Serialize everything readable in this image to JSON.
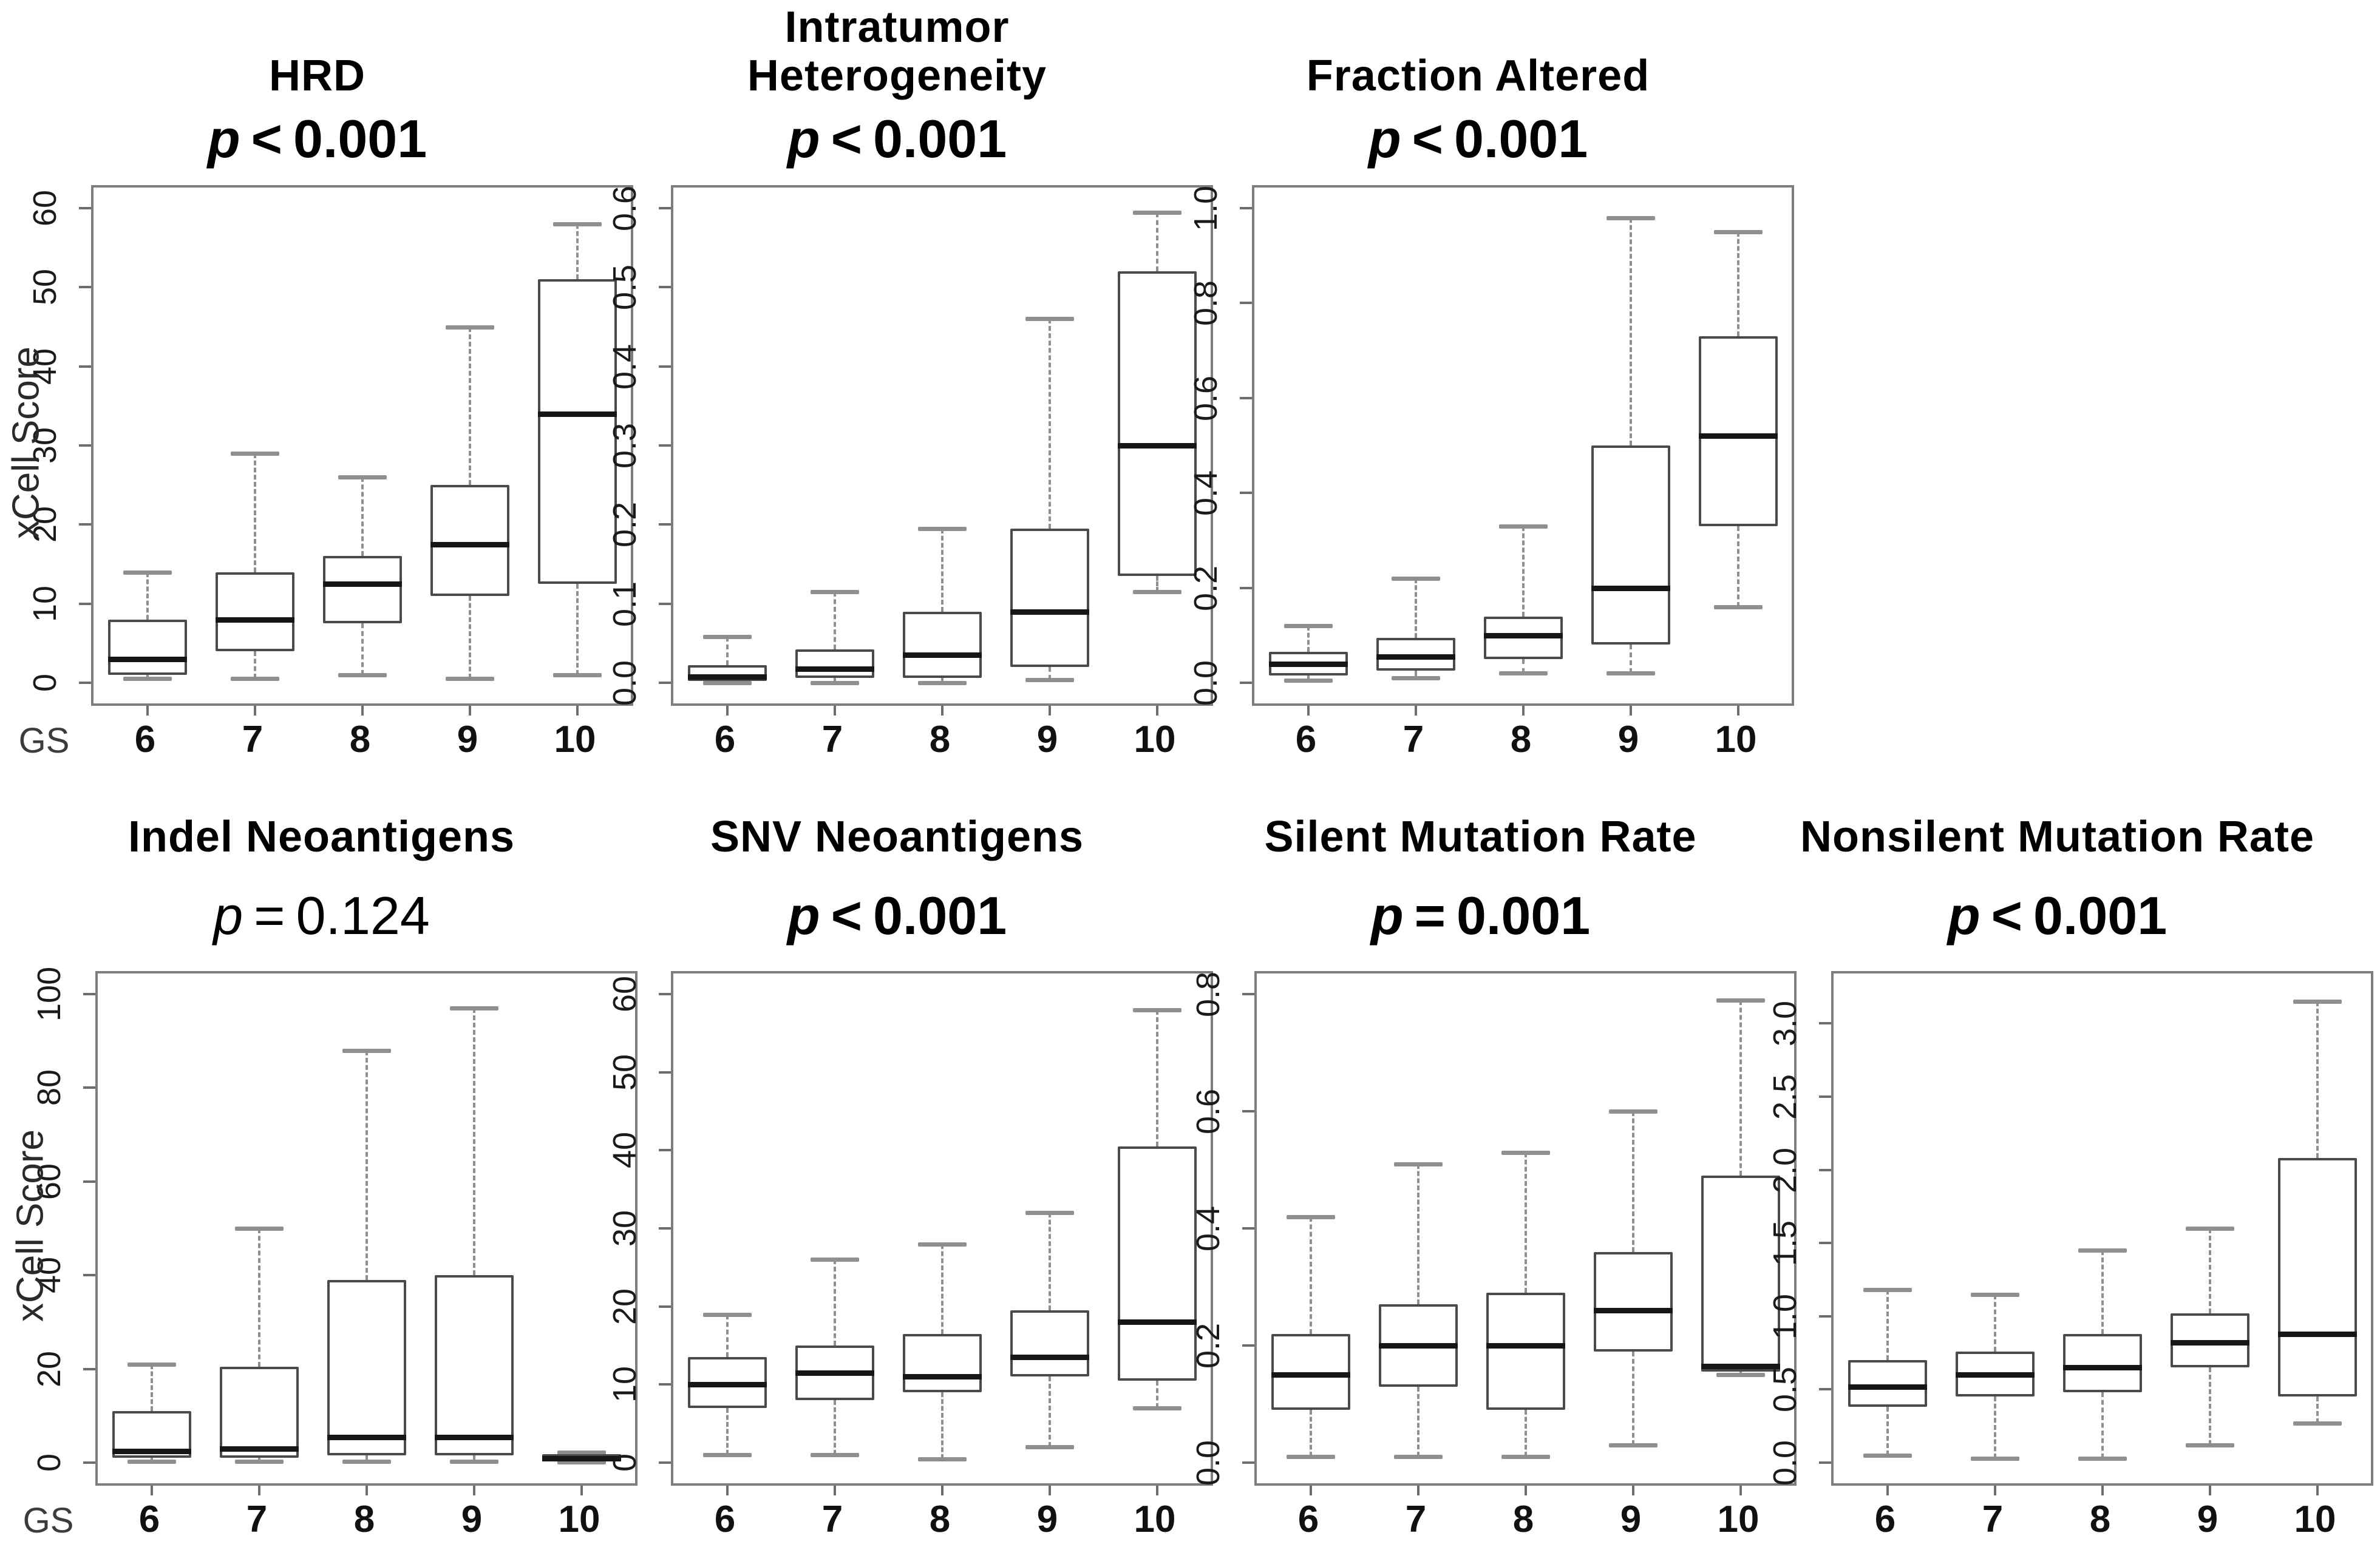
{
  "figure": {
    "description": "Seven-panel boxplot figure of genomic instability metrics by Gleason Score (GS) groups 6-10",
    "shared_y_axis_title": "xCell Score",
    "x_axis_prefix_label": "GS",
    "style_colors": {
      "background": "#ffffff",
      "frame": "#7e7e7e",
      "box_border": "#4a4a4a",
      "median": "#161616",
      "whisker": "#8f8f8f",
      "text": "#000000"
    }
  },
  "chart_data": [
    {
      "type": "boxplot",
      "title_lines": [
        "HRD"
      ],
      "p_value": {
        "symbol": "p",
        "comparator": "<",
        "value": "0.001",
        "bold": true
      },
      "y_axis": {
        "label": "xCell Score",
        "display_max": 60,
        "ticks": [
          "0",
          "10",
          "20",
          "30",
          "40",
          "50",
          "60"
        ],
        "tick_values": [
          0,
          10,
          20,
          30,
          40,
          50,
          60
        ]
      },
      "x_axis": {
        "label_prefix": "GS",
        "categories": [
          "6",
          "7",
          "8",
          "9",
          "10"
        ]
      },
      "boxes": [
        {
          "category": "6",
          "whisker_low": 0.5,
          "q1": 1,
          "median": 3,
          "q3": 8,
          "whisker_high": 14
        },
        {
          "category": "7",
          "whisker_low": 0.5,
          "q1": 4,
          "median": 8,
          "q3": 14,
          "whisker_high": 29
        },
        {
          "category": "8",
          "whisker_low": 1,
          "q1": 7.5,
          "median": 12.5,
          "q3": 16,
          "whisker_high": 26
        },
        {
          "category": "9",
          "whisker_low": 0.5,
          "q1": 11,
          "median": 17.5,
          "q3": 25,
          "whisker_high": 45
        },
        {
          "category": "10",
          "whisker_low": 1,
          "q1": 12.5,
          "median": 34,
          "q3": 51,
          "whisker_high": 58
        }
      ]
    },
    {
      "type": "boxplot",
      "title_lines": [
        "Intratumor",
        "Heterogeneity"
      ],
      "p_value": {
        "symbol": "p",
        "comparator": "<",
        "value": "0.001",
        "bold": true
      },
      "y_axis": {
        "label": null,
        "display_max": 0.6,
        "ticks": [
          "0.0",
          "0.1",
          "0.2",
          "0.3",
          "0.4",
          "0.5",
          "0.6"
        ],
        "tick_values": [
          0,
          0.1,
          0.2,
          0.3,
          0.4,
          0.5,
          0.6
        ]
      },
      "x_axis": {
        "label_prefix": null,
        "categories": [
          "6",
          "7",
          "8",
          "9",
          "10"
        ]
      },
      "boxes": [
        {
          "category": "6",
          "whisker_low": 0,
          "q1": 0.002,
          "median": 0.008,
          "q3": 0.022,
          "whisker_high": 0.058
        },
        {
          "category": "7",
          "whisker_low": 0,
          "q1": 0.006,
          "median": 0.018,
          "q3": 0.042,
          "whisker_high": 0.115
        },
        {
          "category": "8",
          "whisker_low": 0,
          "q1": 0.006,
          "median": 0.035,
          "q3": 0.09,
          "whisker_high": 0.195
        },
        {
          "category": "9",
          "whisker_low": 0.004,
          "q1": 0.02,
          "median": 0.09,
          "q3": 0.195,
          "whisker_high": 0.46
        },
        {
          "category": "10",
          "whisker_low": 0.115,
          "q1": 0.135,
          "median": 0.3,
          "q3": 0.52,
          "whisker_high": 0.595
        }
      ]
    },
    {
      "type": "boxplot",
      "title_lines": [
        "Fraction Altered"
      ],
      "p_value": {
        "symbol": "p",
        "comparator": "<",
        "value": "0.001",
        "bold": true
      },
      "y_axis": {
        "label": null,
        "display_max": 1.0,
        "ticks": [
          "0.0",
          "0.2",
          "0.4",
          "0.6",
          "0.8",
          "1.0"
        ],
        "tick_values": [
          0,
          0.2,
          0.4,
          0.6,
          0.8,
          1.0
        ]
      },
      "x_axis": {
        "label_prefix": null,
        "categories": [
          "6",
          "7",
          "8",
          "9",
          "10"
        ]
      },
      "boxes": [
        {
          "category": "6",
          "whisker_low": 0.005,
          "q1": 0.015,
          "median": 0.04,
          "q3": 0.065,
          "whisker_high": 0.12
        },
        {
          "category": "7",
          "whisker_low": 0.01,
          "q1": 0.025,
          "median": 0.055,
          "q3": 0.095,
          "whisker_high": 0.22
        },
        {
          "category": "8",
          "whisker_low": 0.02,
          "q1": 0.05,
          "median": 0.1,
          "q3": 0.14,
          "whisker_high": 0.33
        },
        {
          "category": "9",
          "whisker_low": 0.02,
          "q1": 0.08,
          "median": 0.2,
          "q3": 0.5,
          "whisker_high": 0.98
        },
        {
          "category": "10",
          "whisker_low": 0.16,
          "q1": 0.33,
          "median": 0.52,
          "q3": 0.73,
          "whisker_high": 0.95
        }
      ]
    },
    {
      "type": "boxplot",
      "title_lines": [
        "Indel Neoantigens"
      ],
      "p_value": {
        "symbol": "p",
        "comparator": "=",
        "value": "0.124",
        "bold": false
      },
      "y_axis": {
        "label": "xCell Score",
        "display_max": 100,
        "ticks": [
          "0",
          "20",
          "40",
          "60",
          "80",
          "100"
        ],
        "tick_values": [
          0,
          20,
          40,
          60,
          80,
          100
        ]
      },
      "x_axis": {
        "label_prefix": "GS",
        "categories": [
          "6",
          "7",
          "8",
          "9",
          "10"
        ]
      },
      "boxes": [
        {
          "category": "6",
          "whisker_low": 0.3,
          "q1": 1,
          "median": 2.5,
          "q3": 11,
          "whisker_high": 21
        },
        {
          "category": "7",
          "whisker_low": 0.3,
          "q1": 1,
          "median": 3,
          "q3": 20.5,
          "whisker_high": 50
        },
        {
          "category": "8",
          "whisker_low": 0.3,
          "q1": 1.5,
          "median": 5.5,
          "q3": 39,
          "whisker_high": 88
        },
        {
          "category": "9",
          "whisker_low": 0.3,
          "q1": 1.5,
          "median": 5.5,
          "q3": 40,
          "whisker_high": 97
        },
        {
          "category": "10",
          "whisker_low": 0.1,
          "q1": 0.3,
          "median": 0.9,
          "q3": 1.8,
          "whisker_high": 2.2
        }
      ]
    },
    {
      "type": "boxplot",
      "title_lines": [
        "SNV Neoantigens"
      ],
      "p_value": {
        "symbol": "p",
        "comparator": "<",
        "value": "0.001",
        "bold": true
      },
      "y_axis": {
        "label": null,
        "display_max": 60,
        "ticks": [
          "0",
          "10",
          "20",
          "30",
          "40",
          "50",
          "60"
        ],
        "tick_values": [
          0,
          10,
          20,
          30,
          40,
          50,
          60
        ]
      },
      "x_axis": {
        "label_prefix": null,
        "categories": [
          "6",
          "7",
          "8",
          "9",
          "10"
        ]
      },
      "boxes": [
        {
          "category": "6",
          "whisker_low": 1,
          "q1": 7,
          "median": 10,
          "q3": 13.5,
          "whisker_high": 19
        },
        {
          "category": "7",
          "whisker_low": 1,
          "q1": 8,
          "median": 11.5,
          "q3": 15,
          "whisker_high": 26
        },
        {
          "category": "8",
          "whisker_low": 0.5,
          "q1": 9,
          "median": 11,
          "q3": 16.5,
          "whisker_high": 28
        },
        {
          "category": "9",
          "whisker_low": 2,
          "q1": 11,
          "median": 13.5,
          "q3": 19.5,
          "whisker_high": 32
        },
        {
          "category": "10",
          "whisker_low": 7,
          "q1": 10.5,
          "median": 18,
          "q3": 40.5,
          "whisker_high": 58
        }
      ]
    },
    {
      "type": "boxplot",
      "title_lines": [
        "Silent Mutation Rate"
      ],
      "p_value": {
        "symbol": "p",
        "comparator": "=",
        "value": "0.001",
        "bold": true
      },
      "y_axis": {
        "label": null,
        "display_max": 0.8,
        "ticks": [
          "0.0",
          "0.2",
          "0.4",
          "0.6",
          "0.8"
        ],
        "tick_values": [
          0,
          0.2,
          0.4,
          0.6,
          0.8
        ]
      },
      "x_axis": {
        "label_prefix": null,
        "categories": [
          "6",
          "7",
          "8",
          "9",
          "10"
        ]
      },
      "boxes": [
        {
          "category": "6",
          "whisker_low": 0.01,
          "q1": 0.09,
          "median": 0.15,
          "q3": 0.22,
          "whisker_high": 0.42
        },
        {
          "category": "7",
          "whisker_low": 0.01,
          "q1": 0.13,
          "median": 0.2,
          "q3": 0.27,
          "whisker_high": 0.51
        },
        {
          "category": "8",
          "whisker_low": 0.01,
          "q1": 0.09,
          "median": 0.2,
          "q3": 0.29,
          "whisker_high": 0.53
        },
        {
          "category": "9",
          "whisker_low": 0.03,
          "q1": 0.19,
          "median": 0.26,
          "q3": 0.36,
          "whisker_high": 0.6
        },
        {
          "category": "10",
          "whisker_low": 0.15,
          "q1": 0.155,
          "median": 0.165,
          "q3": 0.49,
          "whisker_high": 0.79
        }
      ]
    },
    {
      "type": "boxplot",
      "title_lines": [
        "Nonsilent Mutation Rate"
      ],
      "p_value": {
        "symbol": "p",
        "comparator": "<",
        "value": "0.001",
        "bold": true
      },
      "y_axis": {
        "label": null,
        "display_max": 3.2,
        "ticks": [
          "0.0",
          "0.5",
          "1.0",
          "1.5",
          "2.0",
          "2.5",
          "3.0"
        ],
        "tick_values": [
          0,
          0.5,
          1.0,
          1.5,
          2.0,
          2.5,
          3.0
        ]
      },
      "x_axis": {
        "label_prefix": null,
        "categories": [
          "6",
          "7",
          "8",
          "9",
          "10"
        ]
      },
      "boxes": [
        {
          "category": "6",
          "whisker_low": 0.05,
          "q1": 0.38,
          "median": 0.52,
          "q3": 0.7,
          "whisker_high": 1.18
        },
        {
          "category": "7",
          "whisker_low": 0.03,
          "q1": 0.45,
          "median": 0.6,
          "q3": 0.76,
          "whisker_high": 1.15
        },
        {
          "category": "8",
          "whisker_low": 0.03,
          "q1": 0.48,
          "median": 0.65,
          "q3": 0.88,
          "whisker_high": 1.45
        },
        {
          "category": "9",
          "whisker_low": 0.12,
          "q1": 0.65,
          "median": 0.82,
          "q3": 1.02,
          "whisker_high": 1.6
        },
        {
          "category": "10",
          "whisker_low": 0.27,
          "q1": 0.45,
          "median": 0.88,
          "q3": 2.08,
          "whisker_high": 3.15
        }
      ]
    }
  ]
}
